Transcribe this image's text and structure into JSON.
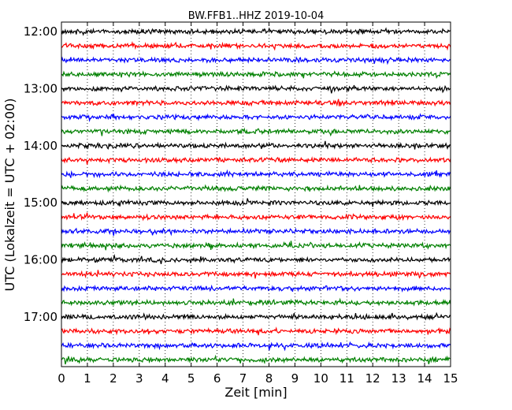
{
  "chart_data": {
    "type": "line",
    "title": "BW.FFB1..HHZ 2019-10-04",
    "xlabel": "Zeit  [min]",
    "ylabel": "UTC (Lokalzeit = UTC + 02:00)",
    "xlim": [
      0,
      15
    ],
    "x_ticks": [
      "0",
      "1",
      "2",
      "3",
      "4",
      "5",
      "6",
      "7",
      "8",
      "9",
      "10",
      "11",
      "12",
      "13",
      "14",
      "15"
    ],
    "y_ticks": [
      "12:00",
      "13:00",
      "14:00",
      "15:00",
      "16:00",
      "17:00"
    ],
    "trace_interval_minutes": 15,
    "trace_start_times": [
      "12:00",
      "12:15",
      "12:30",
      "12:45",
      "13:00",
      "13:15",
      "13:30",
      "13:45",
      "14:00",
      "14:15",
      "14:30",
      "14:45",
      "15:00",
      "15:15",
      "15:30",
      "15:45",
      "16:00",
      "16:15",
      "16:30",
      "16:45",
      "17:00",
      "17:15",
      "17:30",
      "17:45"
    ],
    "trace_colors": [
      "#000000",
      "#ff0000",
      "#0000ff",
      "#008000"
    ],
    "grid": "vertical dotted lines at each minute"
  }
}
